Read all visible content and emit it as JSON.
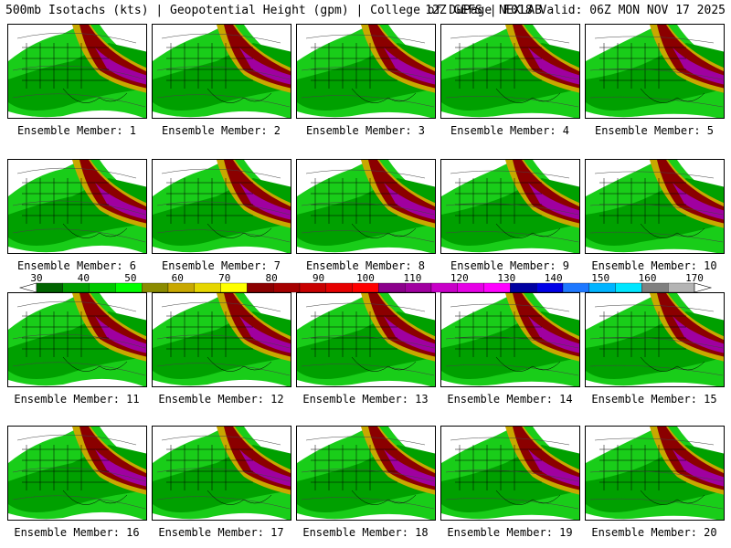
{
  "header": {
    "title_left": "500mb Isotachs (kts) | Geopotential Height (gpm) | College of DuPage NEXLAB",
    "title_right": "12Z GEFS | F018 Valid: 06Z MON NOV 17 2025"
  },
  "members": [
    {
      "label": "Ensemble Member: 1"
    },
    {
      "label": "Ensemble Member: 2"
    },
    {
      "label": "Ensemble Member: 3"
    },
    {
      "label": "Ensemble Member: 4"
    },
    {
      "label": "Ensemble Member: 5"
    },
    {
      "label": "Ensemble Member: 6"
    },
    {
      "label": "Ensemble Member: 7"
    },
    {
      "label": "Ensemble Member: 8"
    },
    {
      "label": "Ensemble Member: 9"
    },
    {
      "label": "Ensemble Member: 10"
    },
    {
      "label": "Ensemble Member: 11"
    },
    {
      "label": "Ensemble Member: 12"
    },
    {
      "label": "Ensemble Member: 13"
    },
    {
      "label": "Ensemble Member: 14"
    },
    {
      "label": "Ensemble Member: 15"
    },
    {
      "label": "Ensemble Member: 16"
    },
    {
      "label": "Ensemble Member: 17"
    },
    {
      "label": "Ensemble Member: 18"
    },
    {
      "label": "Ensemble Member: 19"
    },
    {
      "label": "Ensemble Member: 20"
    }
  ],
  "colorbar": {
    "labels": [
      "30",
      "40",
      "50",
      "60",
      "70",
      "80",
      "90",
      "100",
      "110",
      "120",
      "130",
      "140",
      "150",
      "160",
      "170"
    ],
    "colors": [
      "#006400",
      "#00a000",
      "#00c800",
      "#00ff00",
      "#8b8b00",
      "#c8a800",
      "#e6d600",
      "#ffff00",
      "#8b0000",
      "#a50000",
      "#c80000",
      "#e60000",
      "#ff0000",
      "#8b008b",
      "#a000a0",
      "#c800c8",
      "#e600e6",
      "#ff00ff",
      "#0000a0",
      "#0000e6",
      "#1e78ff",
      "#00b4ff",
      "#00e6ff",
      "#808080",
      "#b4b4b4"
    ]
  }
}
